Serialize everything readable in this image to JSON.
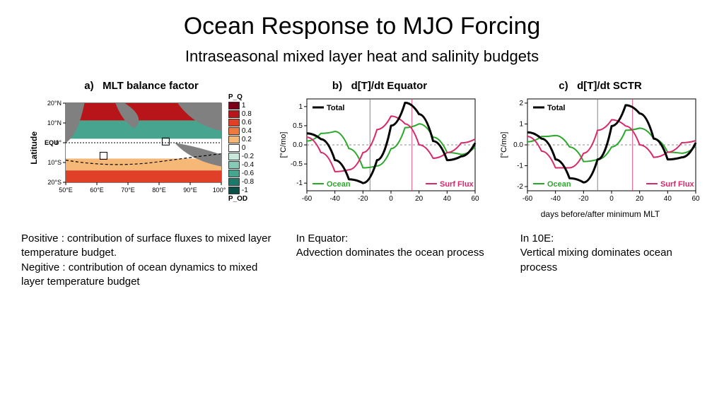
{
  "title": "Ocean Response to MJO Forcing",
  "subtitle": "Intraseasonal mixed layer heat and salinity budgets",
  "panel_a": {
    "letter": "a)",
    "title": "MLT balance factor",
    "ylabel": "Latitude",
    "yticks": [
      "20°N",
      "10°N",
      "0°",
      "10°S",
      "20°S"
    ],
    "xticks": [
      "50°E",
      "60°E",
      "70°E",
      "80°E",
      "90°E",
      "100°E"
    ],
    "colorbar": {
      "labels": [
        "1",
        "0.8",
        "0.6",
        "0.4",
        "0.2",
        "0",
        "-0.2",
        "-0.4",
        "-0.6",
        "-0.8",
        "-1"
      ],
      "top_label": "P_Q",
      "bottom_label": "P_OD",
      "colors": [
        "#7a0018",
        "#b8151a",
        "#e14028",
        "#f07a3e",
        "#f6b877",
        "#ffffff",
        "#c7e8db",
        "#86c9b4",
        "#47a48e",
        "#1d7a6b",
        "#0a4f48"
      ]
    },
    "note": "EQU"
  },
  "panel_b": {
    "letter": "b)",
    "title": "d[T]/dt Equator",
    "ylabel": "[°C/mo]",
    "xlim": [
      -60,
      60
    ],
    "ylim": [
      -1.2,
      1.2
    ],
    "yticks": [
      -1.0,
      -0.5,
      0.0,
      0.5,
      1.0
    ],
    "xticks": [
      -60,
      -40,
      -20,
      0,
      20,
      40,
      60
    ],
    "series": {
      "total": {
        "label": "Total",
        "color": "#000000",
        "width": 3,
        "x": [
          -60,
          -50,
          -40,
          -30,
          -20,
          -10,
          0,
          10,
          20,
          30,
          40,
          50,
          60
        ],
        "y": [
          0.3,
          0.15,
          -0.4,
          -0.9,
          -1.0,
          -0.4,
          0.5,
          1.1,
          0.8,
          0.1,
          -0.4,
          -0.3,
          0.05
        ]
      },
      "ocean": {
        "label": "Ocean",
        "color": "#2aa82a",
        "width": 2,
        "x": [
          -60,
          -50,
          -40,
          -30,
          -20,
          -10,
          0,
          10,
          20,
          30,
          40,
          50,
          60
        ],
        "y": [
          0.1,
          0.3,
          0.35,
          -0.1,
          -0.6,
          -0.55,
          -0.1,
          0.45,
          0.55,
          0.2,
          -0.2,
          -0.25,
          -0.05
        ]
      },
      "surfflux": {
        "label": "Surf Flux",
        "color": "#d8286a",
        "width": 2,
        "x": [
          -60,
          -50,
          -40,
          -30,
          -20,
          -10,
          0,
          10,
          20,
          30,
          40,
          50,
          60
        ],
        "y": [
          0.2,
          -0.2,
          -0.7,
          -0.65,
          -0.2,
          0.4,
          0.75,
          0.55,
          0.0,
          -0.35,
          -0.2,
          0.05,
          0.15
        ]
      }
    },
    "guide_x": [
      -15,
      15
    ],
    "guide_color": "#d8286a"
  },
  "panel_c": {
    "letter": "c)",
    "title": "d[T]/dt SCTR",
    "ylabel": "[°C/mo]",
    "xlabel": "days before/after minimum MLT",
    "xlim": [
      -60,
      60
    ],
    "ylim": [
      -2.2,
      2.2
    ],
    "yticks": [
      -2,
      -1,
      0,
      1,
      2
    ],
    "xticks": [
      -60,
      -40,
      -20,
      0,
      20,
      40,
      60
    ],
    "series": {
      "total": {
        "label": "Total",
        "color": "#000000",
        "width": 3,
        "x": [
          -60,
          -50,
          -40,
          -30,
          -20,
          -10,
          0,
          10,
          20,
          30,
          40,
          50,
          60
        ],
        "y": [
          0.6,
          0.3,
          -0.7,
          -1.6,
          -1.8,
          -0.7,
          0.9,
          1.9,
          1.5,
          0.3,
          -0.7,
          -0.6,
          0.1
        ]
      },
      "ocean": {
        "label": "Ocean",
        "color": "#2aa82a",
        "width": 2,
        "x": [
          -60,
          -50,
          -40,
          -30,
          -20,
          -10,
          0,
          10,
          20,
          30,
          40,
          50,
          60
        ],
        "y": [
          0.15,
          0.4,
          0.45,
          -0.1,
          -0.8,
          -0.7,
          -0.1,
          0.7,
          0.8,
          0.3,
          -0.35,
          -0.4,
          -0.05
        ]
      },
      "surfflux": {
        "label": "Surf Flux",
        "color": "#d8286a",
        "width": 2,
        "x": [
          -60,
          -50,
          -40,
          -30,
          -20,
          -10,
          0,
          10,
          20,
          30,
          40,
          50,
          60
        ],
        "y": [
          0.4,
          -0.3,
          -1.1,
          -1.1,
          -0.4,
          0.7,
          1.2,
          0.9,
          0.0,
          -0.6,
          -0.35,
          0.1,
          0.2
        ]
      }
    },
    "guide_x": [
      -10,
      15
    ],
    "guide_color": "#d8286a"
  },
  "captions": {
    "a": "Positive : contribution of surface fluxes to mixed layer temperature budget.\nNegitive : contribution of ocean dynamics to mixed layer temperature budget",
    "b": "In Equator:\nAdvection dominates the ocean process",
    "c": "In 10E:\nVertical mixing dominates ocean process"
  },
  "chart_style": {
    "bg": "#ffffff",
    "axis_color": "#000000",
    "grid_dash": "3,3",
    "label_fontsize": 11,
    "tick_fontsize": 10
  }
}
